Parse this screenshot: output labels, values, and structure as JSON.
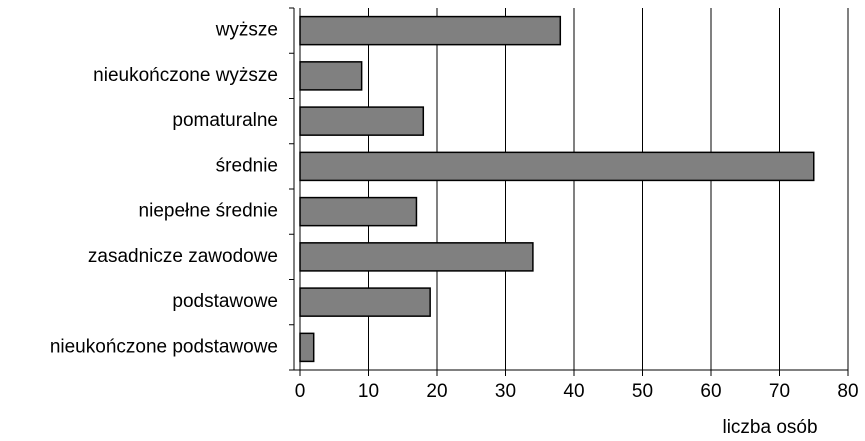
{
  "chart_data": {
    "type": "bar",
    "orientation": "horizontal",
    "categories": [
      "wyższe",
      "nieukończone wyższe",
      "pomaturalne",
      "średnie",
      "niepełne średnie",
      "zasadnicze zawodowe",
      "podstawowe",
      "nieukończone podstawowe"
    ],
    "values": [
      38,
      9,
      18,
      75,
      17,
      34,
      19,
      2
    ],
    "color": "#808080",
    "xlabel": "liczba osób",
    "xlim": [
      0,
      80
    ],
    "xticks": [
      0,
      10,
      20,
      30,
      40,
      50,
      60,
      70,
      80
    ],
    "grid": true
  }
}
